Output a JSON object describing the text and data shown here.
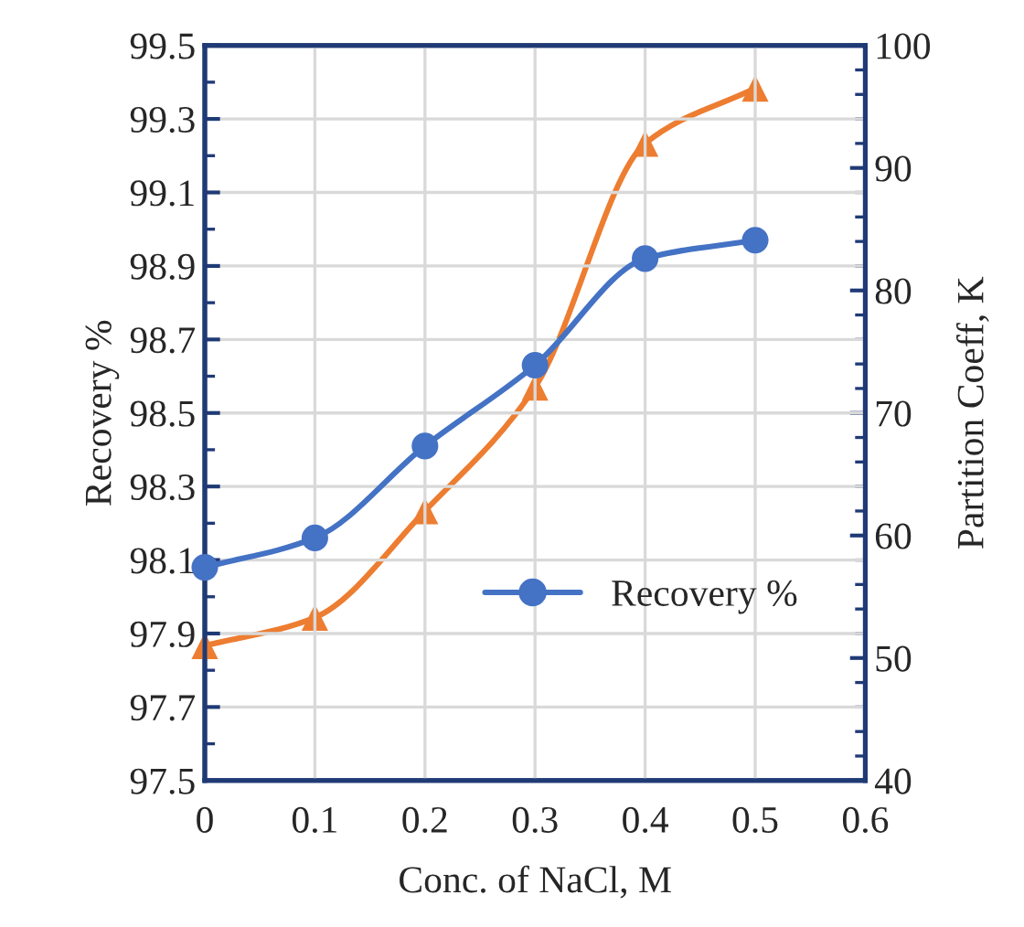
{
  "chart_data": {
    "type": "line",
    "xlabel": "Conc. of NaCl, M",
    "ylabel": "Recovery %",
    "y2label": "Partition Coeff, K",
    "x": [
      0,
      0.1,
      0.2,
      0.3,
      0.4,
      0.5
    ],
    "series": [
      {
        "name": "Recovery %",
        "color": "#4472c4",
        "values": [
          98.08,
          98.16,
          98.41,
          98.63,
          98.92,
          98.97
        ],
        "marker": "circle"
      },
      {
        "color": "#ed7d31",
        "values": [
          51,
          53.3,
          62,
          72.1,
          92,
          96.5
        ],
        "axis": "y2",
        "marker": "triangle"
      }
    ],
    "xlim": [
      0,
      0.6
    ],
    "xticks": [
      0,
      0.1,
      0.2,
      0.3,
      0.4,
      0.5,
      0.6
    ],
    "ylim": [
      97.5,
      99.5
    ],
    "yticks": [
      97.5,
      97.7,
      97.9,
      98.1,
      98.3,
      98.5,
      98.7,
      98.9,
      99.1,
      99.3,
      99.5
    ],
    "y2lim": [
      40,
      100
    ],
    "y2ticks": [
      40,
      50,
      60,
      70,
      80,
      90,
      100
    ],
    "grid": true,
    "legend": "bottom right",
    "line_style": "solid"
  }
}
